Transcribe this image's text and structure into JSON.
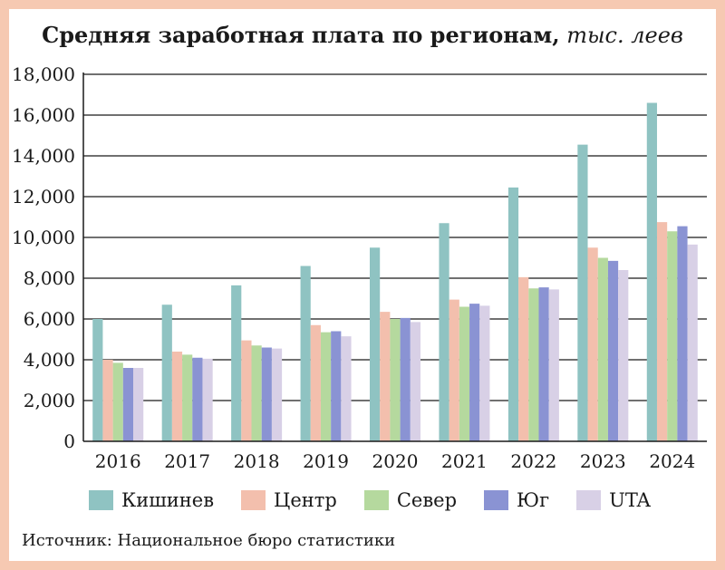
{
  "title": "Средняя заработная плата по регионам,",
  "title_unit": "тыс. леев",
  "source": "Источник: Национальное бюро статистики",
  "chart_data": {
    "type": "bar",
    "categories": [
      "2016",
      "2017",
      "2018",
      "2019",
      "2020",
      "2021",
      "2022",
      "2023",
      "2024"
    ],
    "series": [
      {
        "name": "Кишинев",
        "color": "#8fc3c2",
        "values": [
          6000,
          6700,
          7650,
          8600,
          9500,
          10700,
          12450,
          14550,
          16600
        ]
      },
      {
        "name": "Центр",
        "color": "#f3bfad",
        "values": [
          4000,
          4400,
          4950,
          5700,
          6350,
          6950,
          8050,
          9500,
          10750
        ]
      },
      {
        "name": "Север",
        "color": "#b5d99e",
        "values": [
          3850,
          4250,
          4700,
          5350,
          6000,
          6600,
          7500,
          9000,
          10300
        ]
      },
      {
        "name": "Юг",
        "color": "#8a93d3",
        "values": [
          3600,
          4100,
          4600,
          5400,
          6050,
          6750,
          7550,
          8850,
          10550
        ]
      },
      {
        "name": "UTA",
        "color": "#d8d0e6",
        "values": [
          3600,
          4050,
          4550,
          5150,
          5850,
          6650,
          7450,
          8400,
          9650
        ]
      }
    ],
    "yticks": [
      "0",
      "2,000",
      "4,000",
      "6,000",
      "8,000",
      "10,000",
      "12,000",
      "14,000",
      "16,000",
      "18,000"
    ],
    "ylim": [
      0,
      18000
    ],
    "grid": true,
    "legend_position": "bottom"
  }
}
